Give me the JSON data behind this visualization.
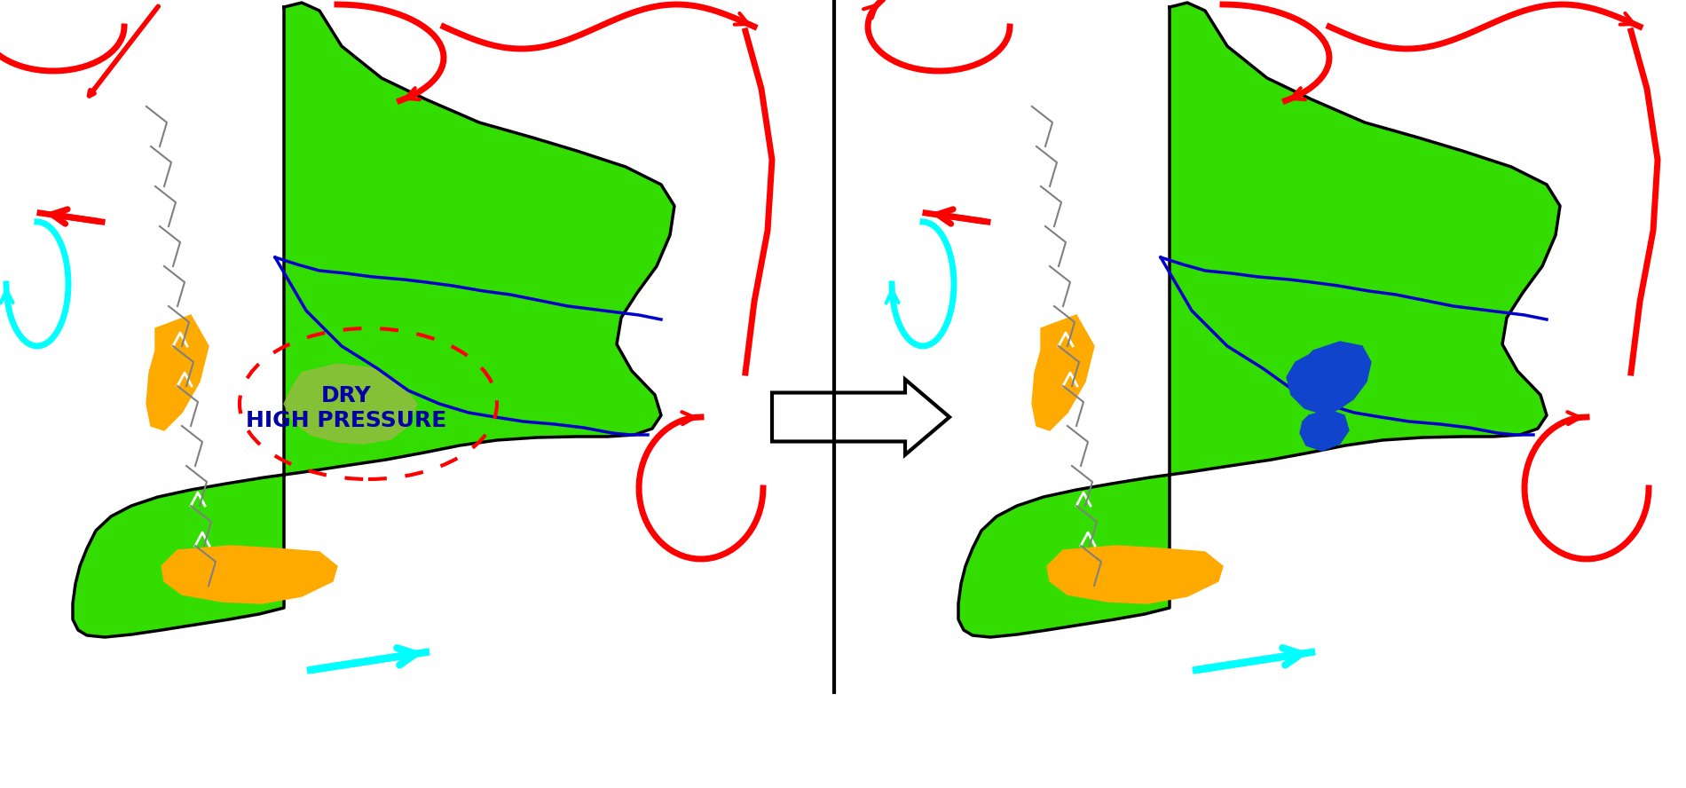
{
  "bg_color": "#ffffff",
  "green_color": "#33dd00",
  "dark_green_color": "#99bb44",
  "orange_color": "#ffaa00",
  "blue_color": "#0000cc",
  "red_color": "#ff0000",
  "cyan_color": "#00ddff",
  "gray_color": "#aaaaaa",
  "black_color": "#000000",
  "label_text": "DRY\nHIGH PRESSURE",
  "label_color": "#0000aa"
}
